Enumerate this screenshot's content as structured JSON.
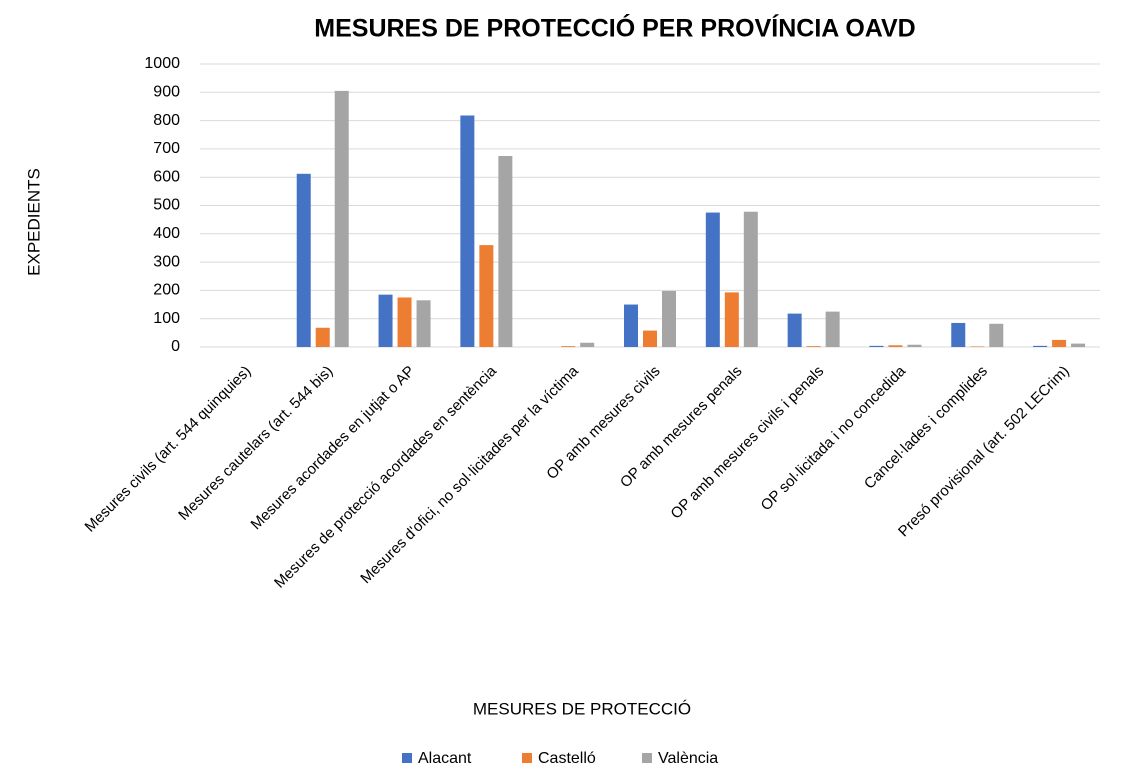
{
  "chart_data": {
    "type": "bar",
    "title": "MESURES DE PROTECCIÓ PER PROVÍNCIA OAVD",
    "x_label": "MESURES DE PROTECCIÓ",
    "y_label": "EXPEDIENTS",
    "categories": [
      "Mesures civils (art. 544 quinquies)",
      "Mesures cautelars (art. 544 bis)",
      "Mesures acordades en jutjat o AP",
      "Mesures de protecció acordades en sentència",
      "Mesures d'ofici, no sol·licitades per la víctima",
      "OP amb mesures civils",
      "OP amb mesures penals",
      "OP amb mesures civils i penals",
      "OP sol·licitada i no concedida",
      "Cancel·lades i complides",
      "Presó provisional (art. 502 LECrim)"
    ],
    "series": [
      {
        "name": "Alacant",
        "color": "#4472c4",
        "values": [
          0,
          612,
          185,
          818,
          0,
          150,
          475,
          118,
          4,
          85,
          4
        ]
      },
      {
        "name": "Castelló",
        "color": "#ed7d31",
        "values": [
          0,
          68,
          175,
          360,
          3,
          58,
          193,
          3,
          6,
          2,
          25
        ]
      },
      {
        "name": "València",
        "color": "#a5a5a5",
        "values": [
          0,
          905,
          165,
          675,
          15,
          198,
          478,
          125,
          8,
          82,
          12
        ]
      }
    ],
    "ylim": [
      0,
      1000
    ],
    "yticks": [
      0,
      100,
      200,
      300,
      400,
      500,
      600,
      700,
      800,
      900,
      1000
    ],
    "grid": true,
    "legend": "bottom"
  }
}
